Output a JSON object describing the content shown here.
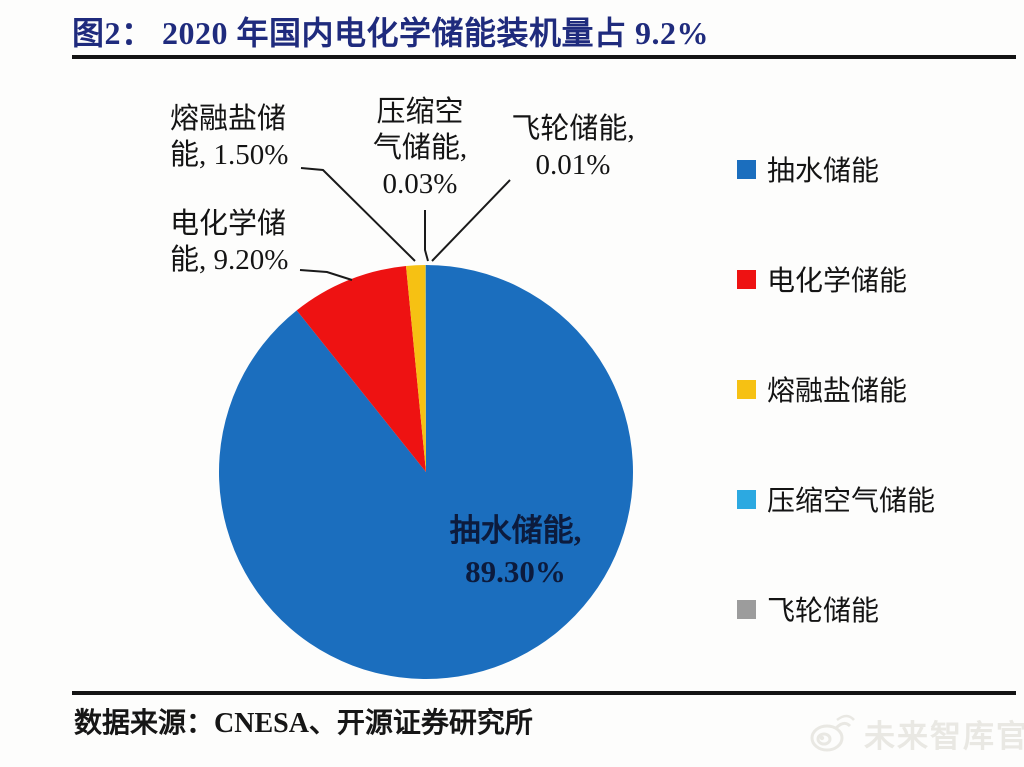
{
  "title": {
    "text": "图2：  2020 年国内电化学储能装机量占 9.2%"
  },
  "chart_data": {
    "type": "pie",
    "title": "2020 年国内电化学储能装机量占 9.2%",
    "legend_position": "right",
    "start_angle_deg": 0,
    "direction": "clockwise",
    "series": [
      {
        "name": "抽水储能",
        "value": 89.3,
        "color": "#1b6ebe",
        "callout": "抽水储能,\n89.30%"
      },
      {
        "name": "电化学储能",
        "value": 9.2,
        "color": "#ee1212",
        "callout": "电化学储\n能, 9.20%"
      },
      {
        "name": "熔融盐储能",
        "value": 1.5,
        "color": "#f6c113",
        "callout": "熔融盐储\n能, 1.50%"
      },
      {
        "name": "压缩空气储能",
        "value": 0.03,
        "color": "#2ca9e1",
        "callout": "压缩空\n气储能,\n0.03%"
      },
      {
        "name": "飞轮储能",
        "value": 0.01,
        "color": "#9c9c9c",
        "callout": "飞轮储能,\n0.01%"
      }
    ]
  },
  "footer": {
    "source_label": "数据来源：CNESA、开源证券研究所"
  },
  "watermark": {
    "text": "未来智库官网",
    "icon": "weibo-logo-icon"
  }
}
